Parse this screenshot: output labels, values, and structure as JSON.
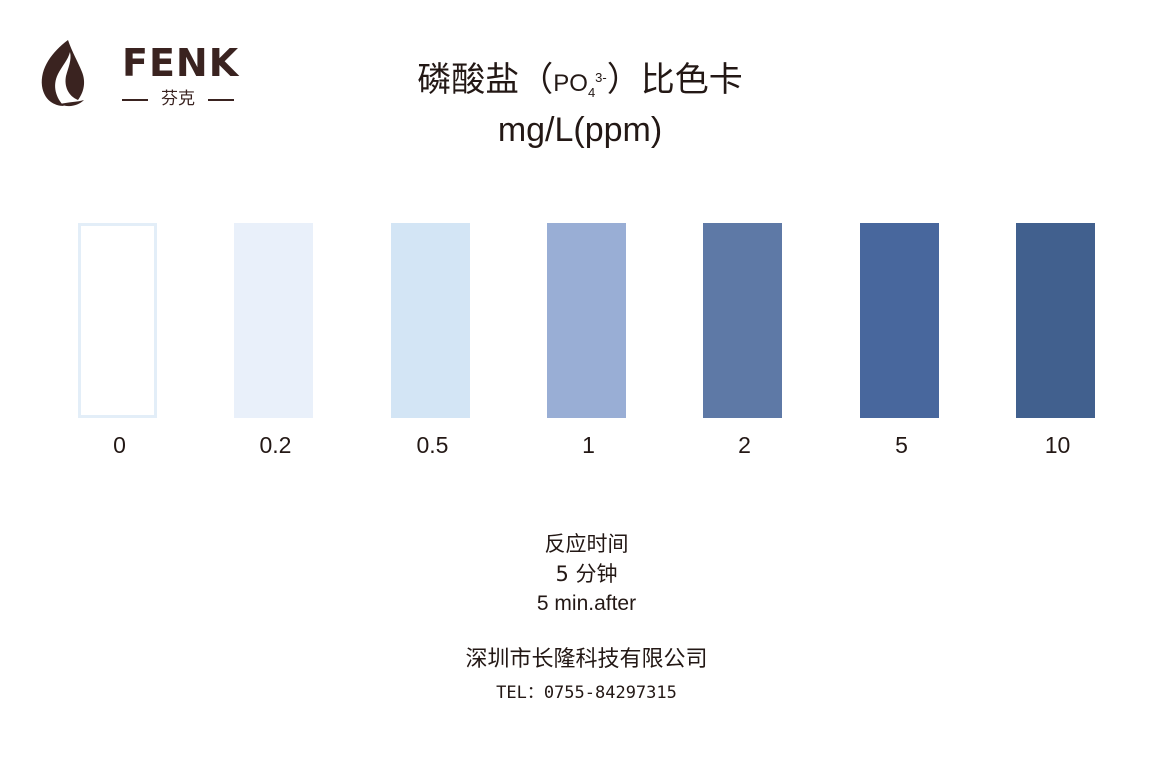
{
  "brand": {
    "name": "FENK",
    "subtitle": "芬克",
    "color": "#3a2320"
  },
  "title": {
    "prefix": "磷酸盐（",
    "chem_base": "PO",
    "chem_sub": "4",
    "chem_sup": "3-",
    "suffix": "）比色卡",
    "unit": "mg/L(ppm)"
  },
  "chart_data": {
    "type": "table",
    "unit": "mg/L(ppm)",
    "swatches": [
      {
        "value": "0",
        "color": "#ffffff",
        "border": "#e3eef8"
      },
      {
        "value": "0.2",
        "color": "#e9f0fa"
      },
      {
        "value": "0.5",
        "color": "#d3e5f5"
      },
      {
        "value": "1",
        "color": "#99aed5"
      },
      {
        "value": "2",
        "color": "#5e79a6"
      },
      {
        "value": "5",
        "color": "#48679d"
      },
      {
        "value": "10",
        "color": "#41608e"
      }
    ]
  },
  "reaction": {
    "label": "反应时间",
    "cn": "5  分钟",
    "en": "5  min.after"
  },
  "company": {
    "name": "深圳市长隆科技有限公司",
    "tel": "TEL：0755-84297315"
  }
}
